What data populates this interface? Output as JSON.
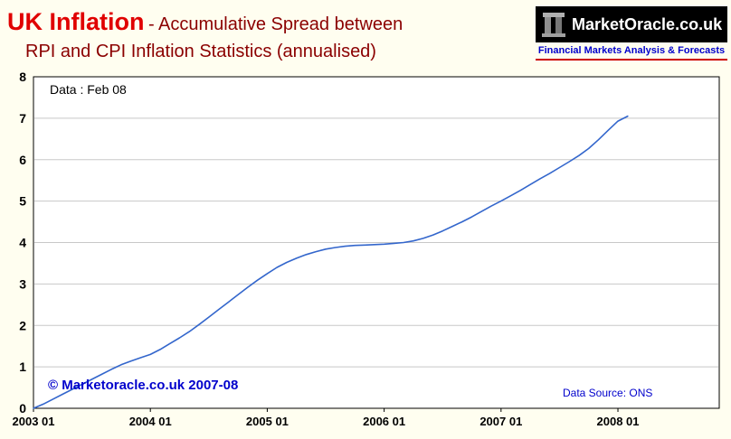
{
  "page": {
    "bg_color": "#fffef0"
  },
  "header": {
    "title_main": "UK Inflation",
    "title_line1_rest": "- Accumulative Spread between",
    "title_line2": "RPI and CPI Inflation Statistics (annualised)",
    "title_main_color": "#e00000",
    "title_sub_color": "#8b0000"
  },
  "logo": {
    "name": "MarketOracle.co.uk",
    "tagline": "Financial Markets Analysis & Forecasts",
    "bar_bg": "#000000",
    "name_color": "#ffffff",
    "tagline_color": "#0000cc",
    "underline_color": "#cc0000",
    "icon": "monument-icon"
  },
  "chart": {
    "data_label": "Data : Feb 08",
    "copyright": "© Marketoracle.co.uk 2007-08",
    "data_source": "Data Source: ONS",
    "copyright_color": "#0000cc",
    "data_source_color": "#0000cc",
    "line_color": "#3366cc",
    "grid_color": "#c8c8c8",
    "plot_bg": "#ffffff",
    "border_color": "#000000",
    "tick_label_color": "#000000"
  },
  "chart_data": {
    "type": "line",
    "title": "UK Inflation - Accumulative Spread between RPI and CPI Inflation Statistics (annualised)",
    "xlabel": "",
    "ylabel": "",
    "ylim": [
      0,
      8
    ],
    "y_ticks": [
      0,
      1,
      2,
      3,
      4,
      5,
      6,
      7,
      8
    ],
    "x_tick_labels": [
      "2003 01",
      "2004 01",
      "2005 01",
      "2006 01",
      "2007 01",
      "2008 01"
    ],
    "x_tick_month_index": [
      0,
      12,
      24,
      36,
      48,
      60
    ],
    "x_axis_total_months": 70.4,
    "grid": "horizontal-only",
    "legend": "none",
    "series": [
      {
        "name": "Accumulative RPI-CPI inflation spread (annualised, %)",
        "color": "#3366cc",
        "start": "2003 01",
        "frequency": "monthly",
        "values": [
          0.0,
          0.1,
          0.22,
          0.34,
          0.46,
          0.58,
          0.7,
          0.82,
          0.94,
          1.05,
          1.14,
          1.22,
          1.3,
          1.42,
          1.56,
          1.7,
          1.85,
          2.02,
          2.2,
          2.38,
          2.56,
          2.74,
          2.92,
          3.09,
          3.25,
          3.4,
          3.52,
          3.62,
          3.71,
          3.78,
          3.84,
          3.88,
          3.91,
          3.93,
          3.94,
          3.95,
          3.96,
          3.98,
          4.0,
          4.04,
          4.1,
          4.18,
          4.28,
          4.39,
          4.5,
          4.62,
          4.75,
          4.88,
          5.0,
          5.13,
          5.26,
          5.4,
          5.54,
          5.67,
          5.81,
          5.95,
          6.1,
          6.27,
          6.48,
          6.71,
          6.93,
          7.05
        ]
      }
    ]
  }
}
